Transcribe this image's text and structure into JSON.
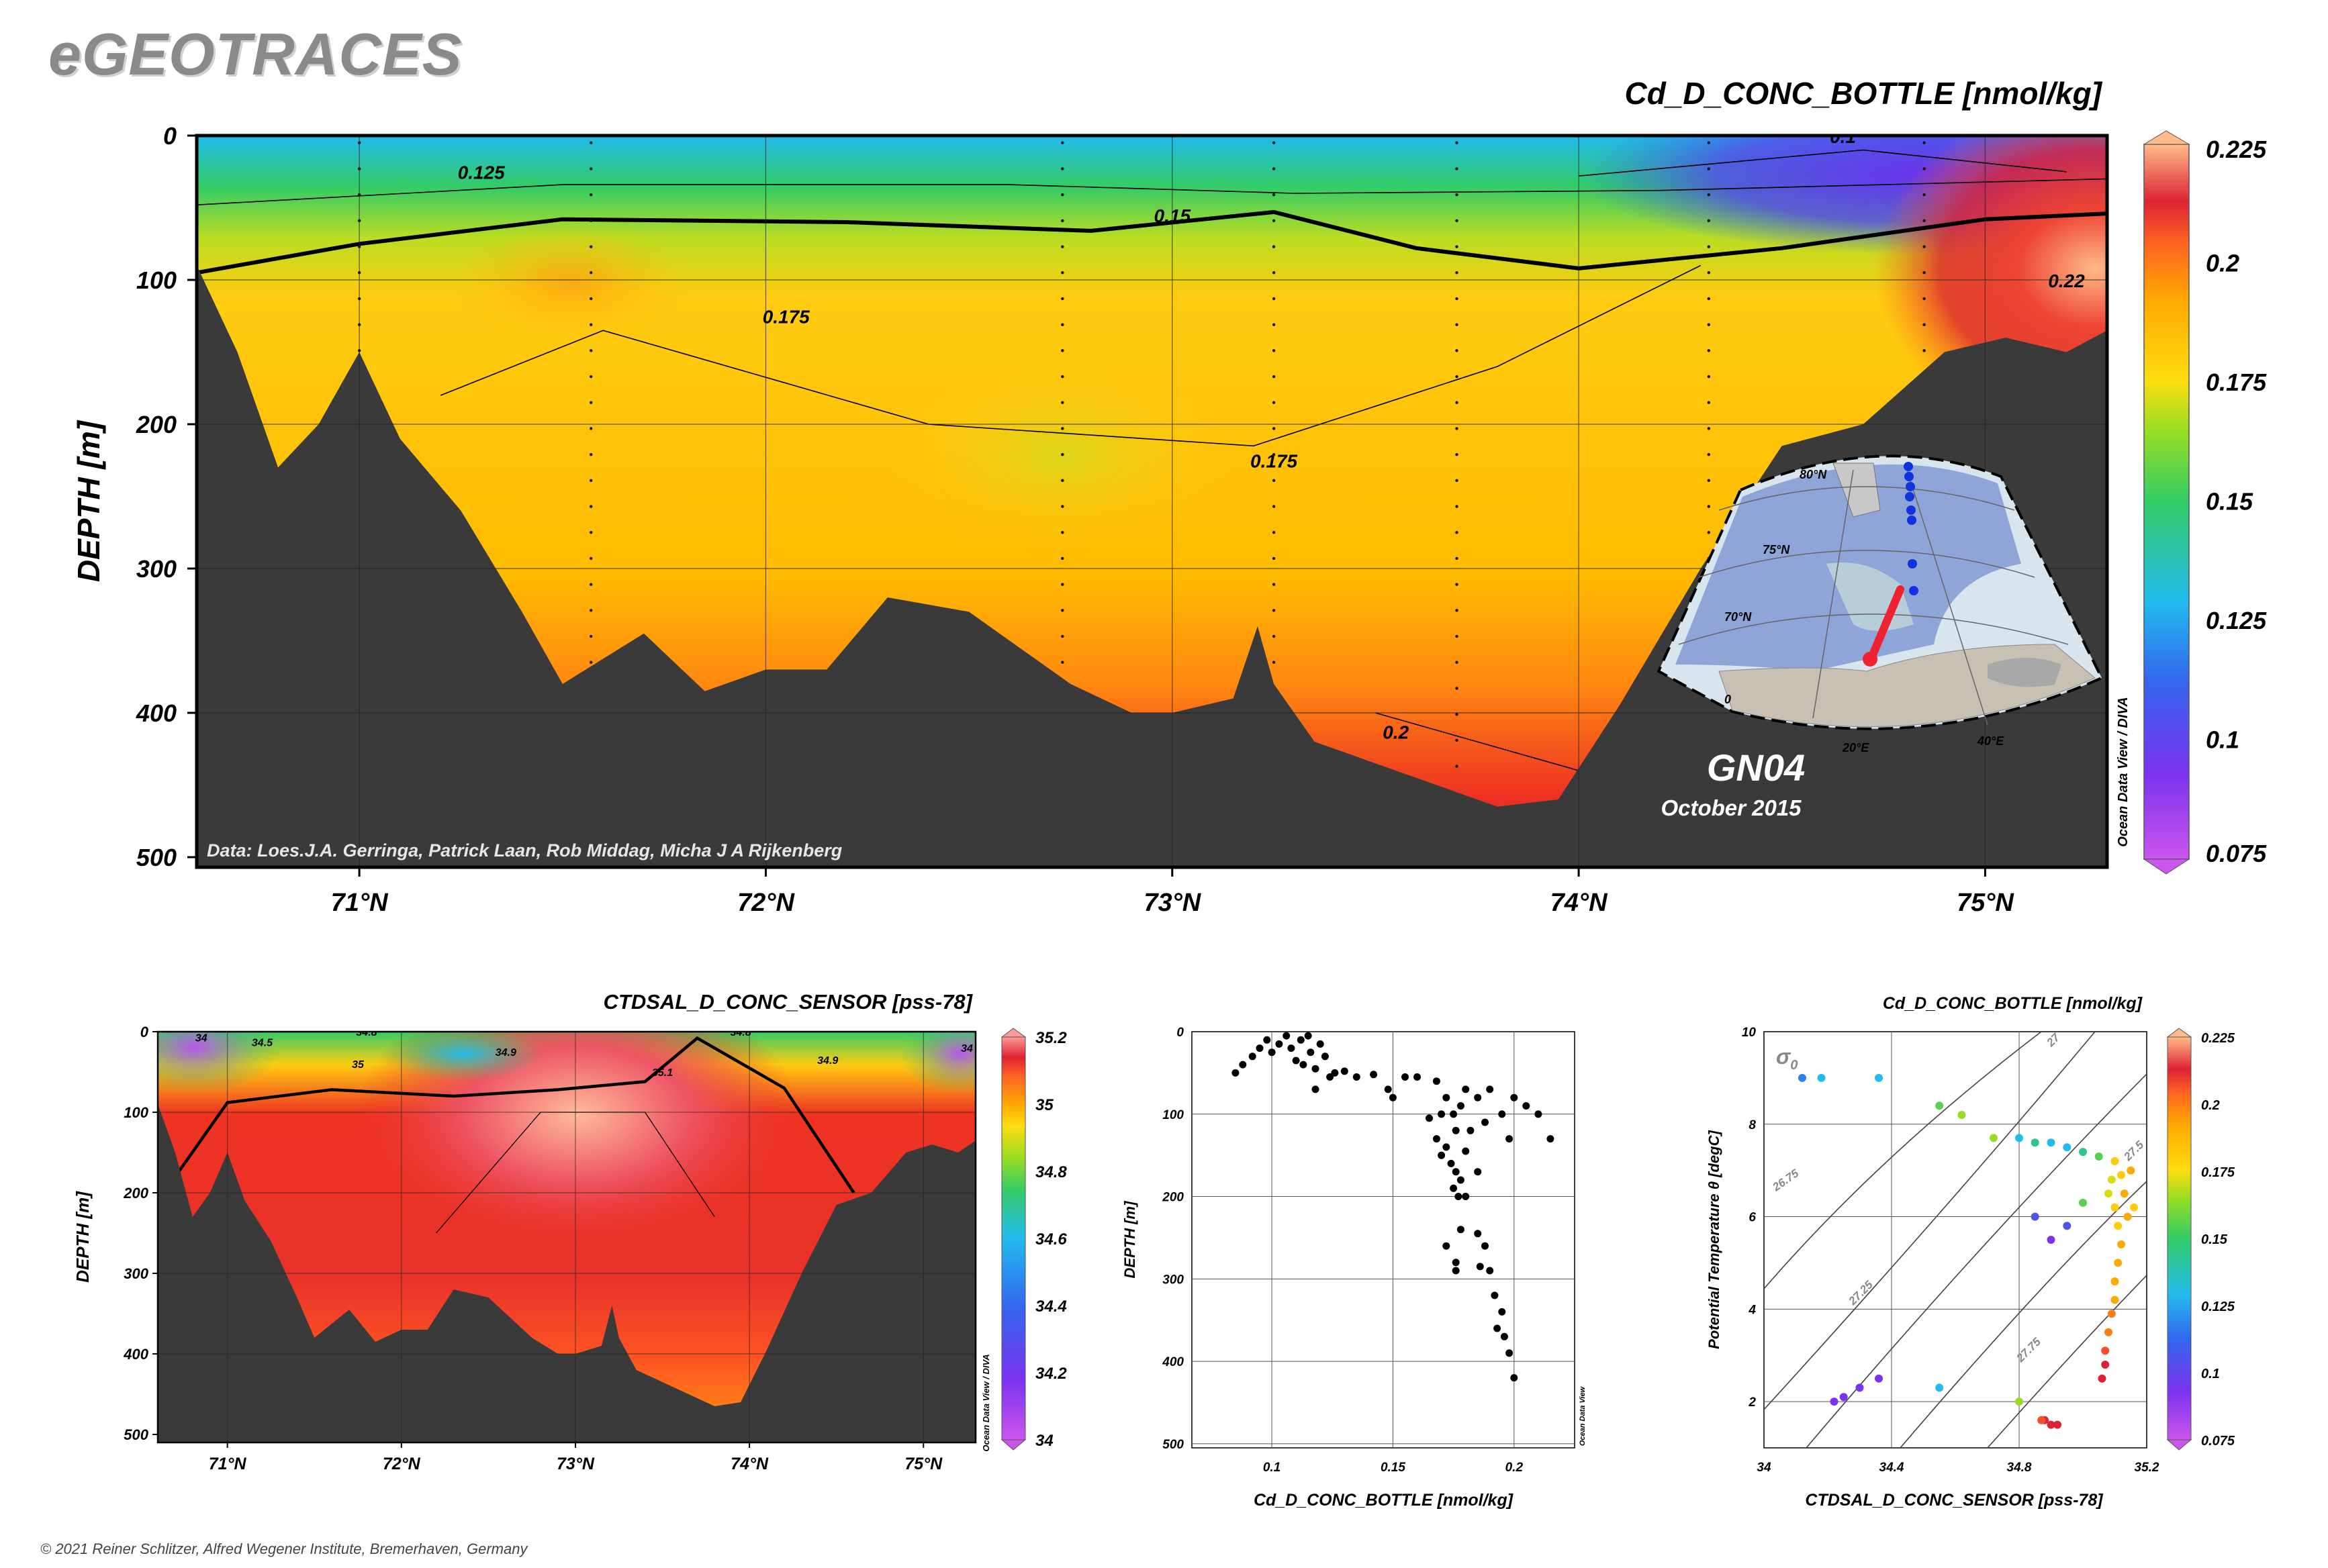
{
  "brand": "eGEOTRACES",
  "copyright": "© 2021 Reiner Schlitzer, Alfred Wegener Institute, Bremerhaven, Germany",
  "colors": {
    "bathymetry": "#3a3a3a",
    "scale": [
      "#cc55ee",
      "#7a33ee",
      "#3366ee",
      "#22bbee",
      "#33cc66",
      "#99dd22",
      "#ffdd11",
      "#ffaa00",
      "#ff6622",
      "#dd2233",
      "#ffbb88"
    ]
  },
  "section": {
    "title": "Cd_D_CONC_BOTTLE [nmol/kg]",
    "ylabel": "DEPTH [m]",
    "credit": "Data: Loes.J.A. Gerringa, Patrick Laan, Rob Middag, Micha J A Rijkenberg",
    "watermark": "Ocean Data View / DIVA",
    "cruise": "GN04",
    "cruise_date": "October 2015",
    "xticks": [
      "71°N",
      "72°N",
      "73°N",
      "74°N",
      "75°N"
    ],
    "yticks": [
      "0",
      "100",
      "200",
      "300",
      "400",
      "500"
    ],
    "colorbar_ticks": [
      "0.225",
      "0.2",
      "0.175",
      "0.15",
      "0.125",
      "0.1",
      "0.075"
    ],
    "contour_labels": [
      "0.125",
      "0.15",
      "0.175",
      "0.175",
      "0.2",
      "0.1",
      "0.22"
    ],
    "map_labels": [
      "80°N",
      "75°N",
      "70°N",
      "20°E",
      "40°E",
      "0"
    ]
  },
  "salinity": {
    "title": "CTDSAL_D_CONC_SENSOR [pss-78]",
    "ylabel": "DEPTH [m]",
    "watermark": "Ocean Data View / DIVA",
    "xticks": [
      "71°N",
      "72°N",
      "73°N",
      "74°N",
      "75°N"
    ],
    "yticks": [
      "0",
      "100",
      "200",
      "300",
      "400",
      "500"
    ],
    "colorbar_ticks": [
      "35.2",
      "35",
      "34.8",
      "34.6",
      "34.4",
      "34.2",
      "34"
    ],
    "contour_labels": [
      "34",
      "34.5",
      "34.8",
      "34.9",
      "35",
      "35.1",
      "34.8",
      "34.9",
      "34"
    ]
  },
  "profile": {
    "xlabel": "Cd_D_CONC_BOTTLE [nmol/kg]",
    "ylabel": "DEPTH [m]",
    "watermark": "Ocean Data View",
    "xticks": [
      "0.1",
      "0.15",
      "0.2"
    ],
    "yticks": [
      "0",
      "100",
      "200",
      "300",
      "400",
      "500"
    ]
  },
  "ts": {
    "title": "Cd_D_CONC_BOTTLE [nmol/kg]",
    "xlabel": "CTDSAL_D_CONC_SENSOR [pss-78]",
    "ylabel": "Potential Temperature θ [degC]",
    "sigma": "σ",
    "sigma_sub": "0",
    "xticks": [
      "34",
      "34.4",
      "34.8",
      "35.2"
    ],
    "yticks": [
      "2",
      "4",
      "6",
      "8",
      "10"
    ],
    "isopycnals": [
      "26.75",
      "27.25",
      "27.75",
      "27",
      "27.5"
    ],
    "colorbar_ticks": [
      "0.225",
      "0.2",
      "0.175",
      "0.15",
      "0.125",
      "0.1",
      "0.075"
    ]
  },
  "chart_data": [
    {
      "type": "heatmap",
      "title": "Cd_D_CONC_BOTTLE [nmol/kg]",
      "xlabel": "",
      "ylabel": "DEPTH [m]",
      "xlim": [
        70.6,
        75.3
      ],
      "ylim": [
        500,
        0
      ],
      "zlim": [
        0.075,
        0.225
      ],
      "stations_lat": [
        71.0,
        71.57,
        72.73,
        73.25,
        73.7,
        74.32,
        74.85
      ],
      "bottom_depth_m": [
        [
          70.6,
          90
        ],
        [
          70.7,
          150
        ],
        [
          70.8,
          230
        ],
        [
          70.9,
          200
        ],
        [
          71.0,
          150
        ],
        [
          71.1,
          210
        ],
        [
          71.25,
          260
        ],
        [
          71.4,
          330
        ],
        [
          71.5,
          380
        ],
        [
          71.7,
          345
        ],
        [
          71.85,
          385
        ],
        [
          72.0,
          370
        ],
        [
          72.15,
          370
        ],
        [
          72.3,
          320
        ],
        [
          72.5,
          330
        ],
        [
          72.75,
          380
        ],
        [
          72.9,
          400
        ],
        [
          73.0,
          400
        ],
        [
          73.15,
          390
        ],
        [
          73.21,
          340
        ],
        [
          73.25,
          380
        ],
        [
          73.35,
          420
        ],
        [
          73.6,
          445
        ],
        [
          73.8,
          465
        ],
        [
          73.95,
          460
        ],
        [
          74.1,
          395
        ],
        [
          74.3,
          300
        ],
        [
          74.5,
          215
        ],
        [
          74.7,
          200
        ],
        [
          74.9,
          150
        ],
        [
          75.05,
          140
        ],
        [
          75.2,
          150
        ],
        [
          75.3,
          135
        ]
      ],
      "contours": [
        {
          "level": 0.125,
          "depth_at_lat": [
            [
              70.6,
              48
            ],
            [
              71.5,
              34
            ],
            [
              72.6,
              34
            ],
            [
              73.3,
              40
            ],
            [
              74.2,
              38
            ],
            [
              75.3,
              30
            ]
          ]
        },
        {
          "level": 0.15,
          "depth_at_lat": [
            [
              70.6,
              95
            ],
            [
              71.0,
              75
            ],
            [
              71.5,
              58
            ],
            [
              72.2,
              60
            ],
            [
              72.8,
              66
            ],
            [
              73.25,
              53
            ],
            [
              73.6,
              78
            ],
            [
              74.0,
              92
            ],
            [
              74.5,
              78
            ],
            [
              75.0,
              58
            ],
            [
              75.3,
              54
            ]
          ]
        },
        {
          "level": 0.175,
          "depth_at_lat": [
            [
              71.2,
              180
            ],
            [
              71.6,
              135
            ],
            [
              72.4,
              200
            ],
            [
              73.2,
              215
            ],
            [
              73.8,
              160
            ],
            [
              74.3,
              90
            ]
          ]
        },
        {
          "level": 0.2,
          "depth_at_lat": [
            [
              73.5,
              400
            ],
            [
              74.0,
              440
            ],
            [
              74.3,
              430
            ]
          ]
        },
        {
          "level": 0.1,
          "depth_at_lat": [
            [
              74.0,
              28
            ],
            [
              74.7,
              10
            ],
            [
              75.2,
              25
            ]
          ]
        }
      ],
      "surface_minimum": {
        "lat": 74.5,
        "depth_m": 20,
        "value": 0.09
      },
      "maximum": {
        "lat": 75.2,
        "depth_m": 130,
        "value": 0.225
      }
    },
    {
      "type": "heatmap",
      "title": "CTDSAL_D_CONC_SENSOR [pss-78]",
      "xlabel": "",
      "ylabel": "DEPTH [m]",
      "xlim": [
        70.6,
        75.3
      ],
      "ylim": [
        500,
        0
      ],
      "zlim": [
        34.0,
        35.2
      ],
      "contours": [
        {
          "level": 35.0,
          "depth_at_lat": [
            [
              70.7,
              180
            ],
            [
              71.0,
              88
            ],
            [
              71.6,
              72
            ],
            [
              72.3,
              80
            ],
            [
              72.9,
              72
            ],
            [
              73.4,
              62
            ],
            [
              73.7,
              8
            ],
            [
              74.2,
              70
            ],
            [
              74.6,
              200
            ]
          ]
        },
        {
          "level": 35.1,
          "depth_at_lat": [
            [
              72.2,
              250
            ],
            [
              72.8,
              100
            ],
            [
              73.4,
              100
            ],
            [
              73.8,
              230
            ]
          ]
        }
      ],
      "maximum": {
        "lat": 73.0,
        "depth_m": 80,
        "value": 35.18
      }
    },
    {
      "type": "scatter",
      "title": "",
      "xlabel": "Cd_D_CONC_BOTTLE [nmol/kg]",
      "ylabel": "DEPTH [m]",
      "xlim": [
        0.067,
        0.225
      ],
      "ylim": [
        505,
        0
      ],
      "points": [
        [
          0.085,
          50
        ],
        [
          0.088,
          40
        ],
        [
          0.092,
          30
        ],
        [
          0.095,
          20
        ],
        [
          0.098,
          10
        ],
        [
          0.1,
          25
        ],
        [
          0.103,
          15
        ],
        [
          0.106,
          5
        ],
        [
          0.108,
          20
        ],
        [
          0.11,
          35
        ],
        [
          0.112,
          10
        ],
        [
          0.113,
          40
        ],
        [
          0.115,
          5
        ],
        [
          0.116,
          25
        ],
        [
          0.118,
          45
        ],
        [
          0.12,
          15
        ],
        [
          0.122,
          30
        ],
        [
          0.124,
          55
        ],
        [
          0.126,
          50
        ],
        [
          0.118,
          70
        ],
        [
          0.13,
          48
        ],
        [
          0.135,
          55
        ],
        [
          0.142,
          52
        ],
        [
          0.148,
          70
        ],
        [
          0.15,
          80
        ],
        [
          0.155,
          55
        ],
        [
          0.16,
          55
        ],
        [
          0.168,
          60
        ],
        [
          0.17,
          100
        ],
        [
          0.172,
          80
        ],
        [
          0.175,
          100
        ],
        [
          0.176,
          120
        ],
        [
          0.178,
          90
        ],
        [
          0.18,
          70
        ],
        [
          0.185,
          80
        ],
        [
          0.188,
          110
        ],
        [
          0.19,
          70
        ],
        [
          0.195,
          100
        ],
        [
          0.198,
          130
        ],
        [
          0.2,
          80
        ],
        [
          0.205,
          90
        ],
        [
          0.21,
          100
        ],
        [
          0.215,
          130
        ],
        [
          0.165,
          105
        ],
        [
          0.172,
          140
        ],
        [
          0.174,
          160
        ],
        [
          0.176,
          170
        ],
        [
          0.178,
          180
        ],
        [
          0.18,
          145
        ],
        [
          0.182,
          120
        ],
        [
          0.185,
          170
        ],
        [
          0.175,
          190
        ],
        [
          0.177,
          200
        ],
        [
          0.17,
          150
        ],
        [
          0.168,
          130
        ],
        [
          0.18,
          200
        ],
        [
          0.172,
          260
        ],
        [
          0.176,
          280
        ],
        [
          0.178,
          240
        ],
        [
          0.185,
          245
        ],
        [
          0.188,
          260
        ],
        [
          0.19,
          290
        ],
        [
          0.192,
          320
        ],
        [
          0.195,
          340
        ],
        [
          0.193,
          360
        ],
        [
          0.196,
          370
        ],
        [
          0.198,
          390
        ],
        [
          0.2,
          420
        ],
        [
          0.176,
          290
        ],
        [
          0.186,
          285
        ]
      ]
    },
    {
      "type": "scatter",
      "title": "Cd_D_CONC_BOTTLE [nmol/kg]",
      "xlabel": "CTDSAL_D_CONC_SENSOR [pss-78]",
      "ylabel": "Potential Temperature θ [degC]",
      "xlim": [
        34.0,
        35.2
      ],
      "ylim": [
        1,
        10
      ],
      "zlim": [
        0.075,
        0.225
      ],
      "points": [
        [
          34.12,
          9.0,
          0.11
        ],
        [
          34.18,
          9.0,
          0.12
        ],
        [
          34.36,
          9.0,
          0.12
        ],
        [
          34.55,
          8.4,
          0.14
        ],
        [
          34.62,
          8.2,
          0.15
        ],
        [
          34.72,
          7.7,
          0.15
        ],
        [
          34.8,
          7.7,
          0.12
        ],
        [
          34.85,
          7.6,
          0.13
        ],
        [
          34.9,
          7.6,
          0.12
        ],
        [
          34.95,
          7.5,
          0.12
        ],
        [
          35.0,
          7.4,
          0.13
        ],
        [
          35.05,
          7.3,
          0.14
        ],
        [
          35.1,
          7.2,
          0.17
        ],
        [
          35.12,
          6.9,
          0.17
        ],
        [
          35.13,
          6.5,
          0.18
        ],
        [
          35.14,
          6.0,
          0.18
        ],
        [
          35.15,
          7.0,
          0.18
        ],
        [
          35.16,
          6.2,
          0.17
        ],
        [
          35.09,
          6.8,
          0.16
        ],
        [
          35.08,
          6.5,
          0.16
        ],
        [
          35.1,
          6.2,
          0.17
        ],
        [
          35.11,
          5.8,
          0.17
        ],
        [
          35.12,
          5.4,
          0.18
        ],
        [
          35.11,
          5.0,
          0.18
        ],
        [
          35.1,
          4.6,
          0.18
        ],
        [
          35.1,
          4.2,
          0.18
        ],
        [
          35.09,
          3.9,
          0.19
        ],
        [
          35.08,
          3.5,
          0.19
        ],
        [
          35.07,
          3.1,
          0.2
        ],
        [
          35.07,
          2.8,
          0.21
        ],
        [
          35.06,
          2.5,
          0.21
        ],
        [
          35.0,
          6.3,
          0.14
        ],
        [
          34.95,
          5.8,
          0.1
        ],
        [
          34.9,
          5.5,
          0.09
        ],
        [
          34.85,
          6.0,
          0.1
        ],
        [
          34.22,
          2.0,
          0.09
        ],
        [
          34.25,
          2.1,
          0.09
        ],
        [
          34.3,
          2.3,
          0.09
        ],
        [
          34.36,
          2.5,
          0.09
        ],
        [
          34.55,
          2.3,
          0.12
        ],
        [
          34.8,
          2.0,
          0.15
        ],
        [
          34.88,
          1.6,
          0.21
        ],
        [
          34.9,
          1.5,
          0.21
        ],
        [
          34.92,
          1.5,
          0.21
        ],
        [
          34.87,
          1.6,
          0.2
        ]
      ]
    }
  ]
}
